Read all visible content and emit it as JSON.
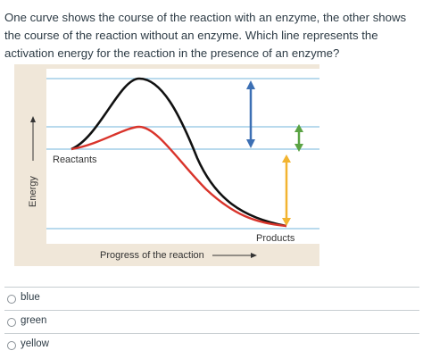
{
  "question": {
    "text": "One curve shows the course of the reaction with an enzyme, the other shows the course of the reaction without an enzyme. Which line represents the activation energy for the reaction in the presence of an enzyme?"
  },
  "figure": {
    "labels": {
      "reactants": "Reactants",
      "products": "Products",
      "x_axis": "Progress of the reaction",
      "y_axis": "Energy"
    },
    "colors": {
      "background": "#f0e7d9",
      "plot_area": "#ffffff",
      "gridline": "#8fc4e2",
      "uncatalyzed_curve": "#111111",
      "catalyzed_curve": "#d9342b",
      "blue_arrow": "#3c6fb4",
      "green_arrow": "#5aa344",
      "yellow_arrow": "#f2b430"
    }
  },
  "answers": {
    "options": [
      {
        "label": "blue"
      },
      {
        "label": "green"
      },
      {
        "label": "yellow"
      }
    ]
  }
}
